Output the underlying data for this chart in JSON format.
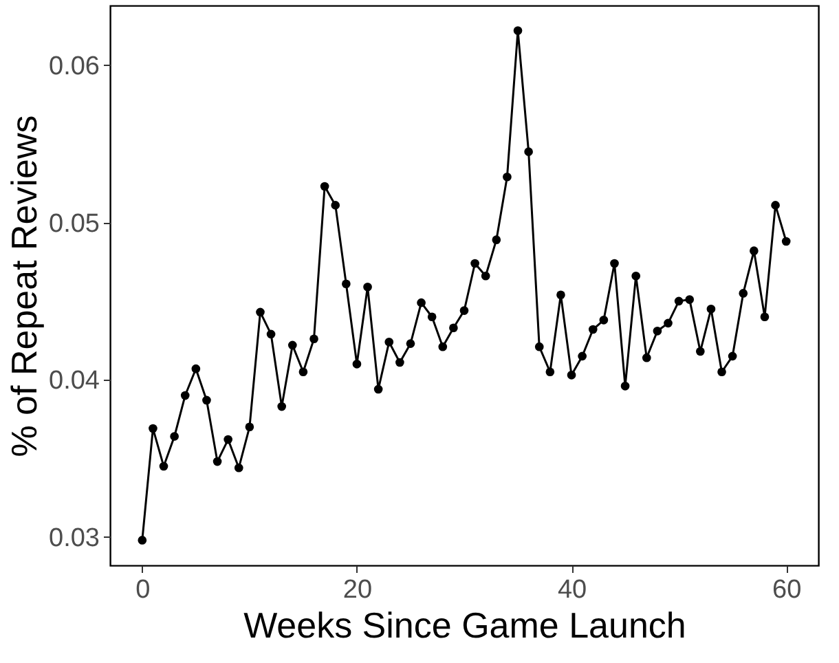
{
  "chart_data": {
    "type": "line",
    "xlabel": "Weeks Since Game Launch",
    "ylabel": "% of Repeat Reviews",
    "marker": "circle",
    "grid": false,
    "legend": false,
    "x": [
      0,
      1,
      2,
      3,
      4,
      5,
      6,
      7,
      8,
      9,
      10,
      11,
      12,
      13,
      14,
      15,
      16,
      17,
      18,
      19,
      20,
      21,
      22,
      23,
      24,
      25,
      26,
      27,
      28,
      29,
      30,
      31,
      32,
      33,
      34,
      35,
      36,
      37,
      38,
      39,
      40,
      41,
      42,
      43,
      44,
      45,
      46,
      47,
      48,
      49,
      50,
      51,
      52,
      53,
      54,
      55,
      56,
      57,
      58,
      59,
      60
    ],
    "series": [
      {
        "color": "#000000",
        "values": [
          0.0298,
          0.0369,
          0.0345,
          0.0364,
          0.039,
          0.0407,
          0.0387,
          0.0348,
          0.0362,
          0.0344,
          0.037,
          0.0443,
          0.0429,
          0.0383,
          0.0422,
          0.0405,
          0.0426,
          0.0523,
          0.0511,
          0.0461,
          0.041,
          0.0459,
          0.0394,
          0.0424,
          0.0411,
          0.0423,
          0.0449,
          0.044,
          0.0421,
          0.0433,
          0.0444,
          0.0474,
          0.0466,
          0.0489,
          0.0529,
          0.0622,
          0.0545,
          0.0421,
          0.0405,
          0.0454,
          0.0403,
          0.0415,
          0.0432,
          0.0438,
          0.0474,
          0.0396,
          0.0466,
          0.0414,
          0.0431,
          0.0436,
          0.045,
          0.0451,
          0.0418,
          0.0445,
          0.0405,
          0.0415,
          0.0455,
          0.0482,
          0.044,
          0.0511,
          0.0488
        ]
      }
    ],
    "xlim": [
      -3,
      63
    ],
    "xticks": [
      0,
      20,
      40,
      60
    ],
    "ylim": [
      0.0282,
      0.0638
    ],
    "yticks": [
      {
        "value": 0.03,
        "label": "0.03"
      },
      {
        "value": 0.04,
        "label": "0.04"
      },
      {
        "value": 0.05,
        "label": "0.05"
      },
      {
        "value": 0.06,
        "label": "0.06"
      }
    ]
  }
}
